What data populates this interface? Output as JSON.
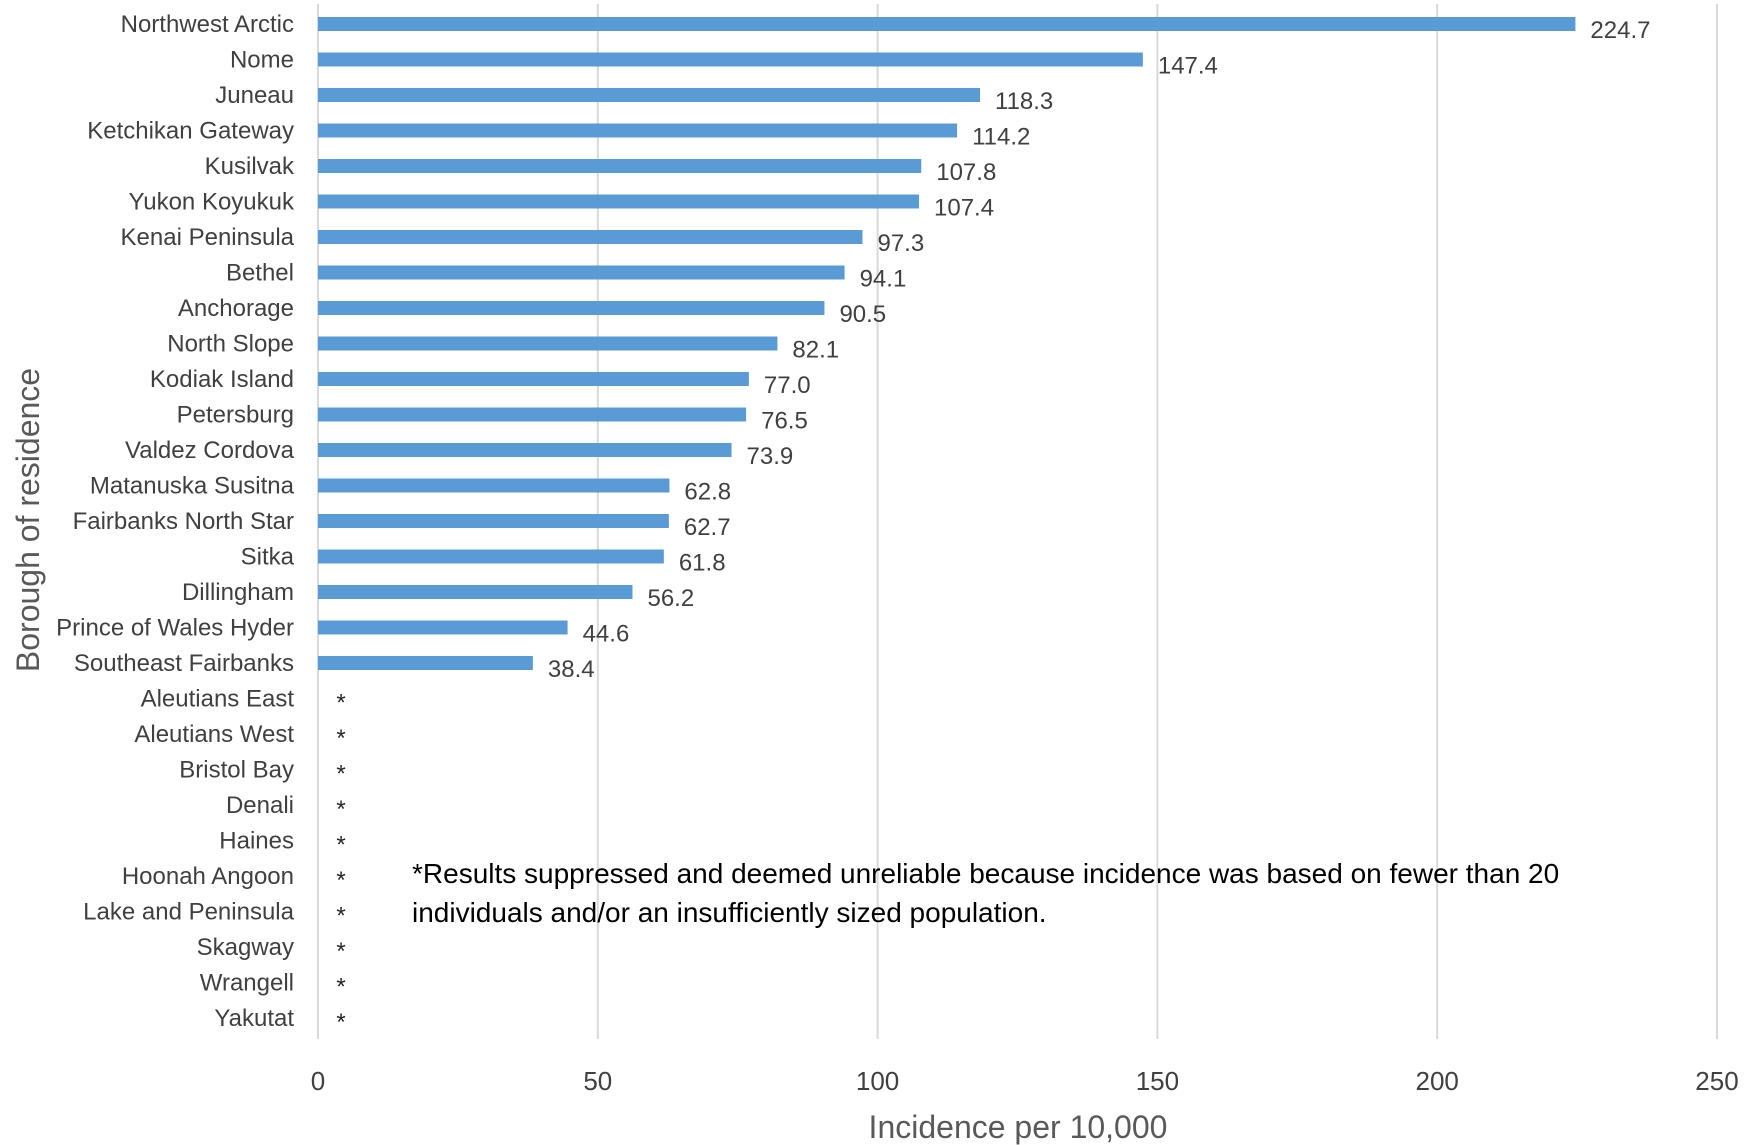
{
  "chart_data": {
    "type": "bar",
    "orientation": "horizontal",
    "title": "",
    "xlabel": "Incidence per 10,000",
    "ylabel": "Borough of residence",
    "xlim": [
      0,
      250
    ],
    "xticks": [
      "0",
      "50",
      "100",
      "150",
      "200",
      "250"
    ],
    "grid": true,
    "categories": [
      "Northwest Arctic",
      "Nome",
      "Juneau",
      "Ketchikan Gateway",
      "Kusilvak",
      "Yukon Koyukuk",
      "Kenai Peninsula",
      "Bethel",
      "Anchorage",
      "North Slope",
      "Kodiak Island",
      "Petersburg",
      "Valdez Cordova",
      "Matanuska Susitna",
      "Fairbanks North Star",
      "Sitka",
      "Dillingham",
      "Prince of Wales Hyder",
      "Southeast Fairbanks",
      "Aleutians East",
      "Aleutians West",
      "Bristol Bay",
      "Denali",
      "Haines",
      "Hoonah Angoon",
      "Lake and Peninsula",
      "Skagway",
      "Wrangell",
      "Yakutat"
    ],
    "values": [
      224.7,
      147.4,
      118.3,
      114.2,
      107.8,
      107.4,
      97.3,
      94.1,
      90.5,
      82.1,
      77.0,
      76.5,
      73.9,
      62.8,
      62.7,
      61.8,
      56.2,
      44.6,
      38.4,
      null,
      null,
      null,
      null,
      null,
      null,
      null,
      null,
      null,
      null
    ],
    "data_labels": [
      "224.7",
      "147.4",
      "118.3",
      "114.2",
      "107.8",
      "107.4",
      "97.3",
      "94.1",
      "90.5",
      "82.1",
      "77.0",
      "76.5",
      "73.9",
      "62.8",
      "62.7",
      "61.8",
      "56.2",
      "44.6",
      "38.4",
      "*",
      "*",
      "*",
      "*",
      "*",
      "*",
      "*",
      "*",
      "*",
      "*"
    ],
    "annotations": [
      "*Results suppressed and deemed unreliable because incidence was based on fewer than 20",
      "individuals and/or an insufficiently sized population."
    ],
    "colors": {
      "bar": "#5b9bd5",
      "grid": "#d9d9d9",
      "text": "#404040"
    }
  }
}
